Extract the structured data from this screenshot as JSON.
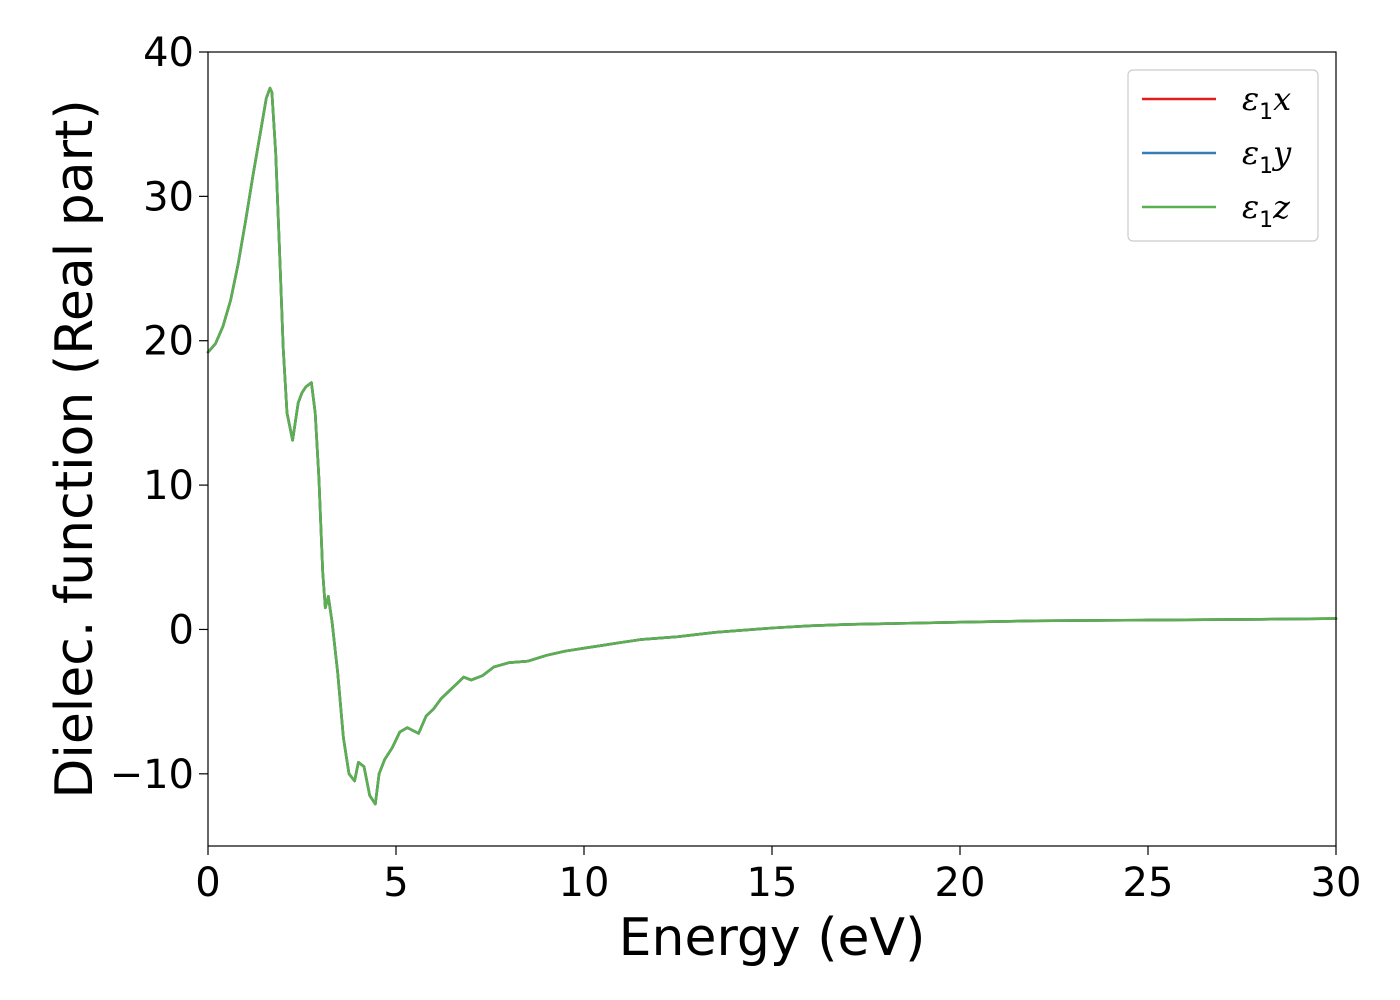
{
  "chart_data": {
    "type": "line",
    "title": "",
    "xlabel": "Energy (eV)",
    "ylabel": "Dielec. function (Real part)",
    "xlim": [
      0,
      30
    ],
    "ylim": [
      -15,
      40
    ],
    "xticks": [
      0,
      5,
      10,
      15,
      20,
      25,
      30
    ],
    "yticks": [
      -10,
      0,
      10,
      20,
      30,
      40
    ],
    "ytick_labels": [
      "−10",
      "0",
      "10",
      "20",
      "30",
      "40"
    ],
    "grid": false,
    "legend_position": "top-right",
    "series": [
      {
        "name": "ε1x",
        "symbol": "ε",
        "subscript": "1",
        "axis": "x",
        "color": "#e41a1c",
        "x": [
          0,
          0.2,
          0.4,
          0.6,
          0.8,
          1.0,
          1.2,
          1.4,
          1.55,
          1.65,
          1.7,
          1.8,
          1.9,
          2.0,
          2.1,
          2.25,
          2.4,
          2.5,
          2.6,
          2.75,
          2.85,
          2.95,
          3.05,
          3.12,
          3.2,
          3.3,
          3.45,
          3.6,
          3.75,
          3.9,
          4.0,
          4.15,
          4.3,
          4.45,
          4.55,
          4.7,
          4.9,
          5.1,
          5.3,
          5.45,
          5.6,
          5.8,
          6.0,
          6.2,
          6.4,
          6.6,
          6.8,
          7.0,
          7.3,
          7.6,
          8.0,
          8.5,
          9.0,
          9.5,
          10.0,
          10.5,
          11.0,
          11.5,
          12.5,
          13.5,
          15.0,
          16.0,
          17.0,
          18.0,
          20.0,
          22.0,
          25.0,
          28.0,
          30.0
        ],
        "y": [
          19.2,
          19.8,
          21.0,
          22.8,
          25.3,
          28.3,
          31.5,
          34.5,
          36.8,
          37.5,
          37.2,
          33.0,
          26.5,
          19.5,
          15.0,
          13.1,
          15.7,
          16.4,
          16.8,
          17.1,
          15.0,
          10.5,
          4.0,
          1.5,
          2.3,
          0.5,
          -3.0,
          -7.5,
          -10.0,
          -10.5,
          -9.2,
          -9.5,
          -11.5,
          -12.1,
          -10.0,
          -9.0,
          -8.2,
          -7.1,
          -6.8,
          -7.0,
          -7.2,
          -6.0,
          -5.5,
          -4.8,
          -4.3,
          -3.8,
          -3.3,
          -3.5,
          -3.2,
          -2.6,
          -2.3,
          -2.2,
          -1.8,
          -1.5,
          -1.3,
          -1.1,
          -0.9,
          -0.7,
          -0.5,
          -0.2,
          0.1,
          0.25,
          0.35,
          0.4,
          0.5,
          0.6,
          0.65,
          0.7,
          0.75
        ]
      },
      {
        "name": "ε1y",
        "symbol": "ε",
        "subscript": "1",
        "axis": "y",
        "color": "#377eb8",
        "x": [
          0,
          0.2,
          0.4,
          0.6,
          0.8,
          1.0,
          1.2,
          1.4,
          1.55,
          1.65,
          1.7,
          1.8,
          1.9,
          2.0,
          2.1,
          2.25,
          2.4,
          2.5,
          2.6,
          2.75,
          2.85,
          2.95,
          3.05,
          3.12,
          3.2,
          3.3,
          3.45,
          3.6,
          3.75,
          3.9,
          4.0,
          4.15,
          4.3,
          4.45,
          4.55,
          4.7,
          4.9,
          5.1,
          5.3,
          5.45,
          5.6,
          5.8,
          6.0,
          6.2,
          6.4,
          6.6,
          6.8,
          7.0,
          7.3,
          7.6,
          8.0,
          8.5,
          9.0,
          9.5,
          10.0,
          10.5,
          11.0,
          11.5,
          12.5,
          13.5,
          15.0,
          16.0,
          17.0,
          18.0,
          20.0,
          22.0,
          25.0,
          28.0,
          30.0
        ],
        "y": [
          19.2,
          19.8,
          21.0,
          22.8,
          25.3,
          28.3,
          31.5,
          34.5,
          36.8,
          37.5,
          37.2,
          33.0,
          26.5,
          19.5,
          15.0,
          13.1,
          15.7,
          16.4,
          16.8,
          17.1,
          15.0,
          10.5,
          4.0,
          1.5,
          2.3,
          0.5,
          -3.0,
          -7.5,
          -10.0,
          -10.5,
          -9.2,
          -9.5,
          -11.5,
          -12.1,
          -10.0,
          -9.0,
          -8.2,
          -7.1,
          -6.8,
          -7.0,
          -7.2,
          -6.0,
          -5.5,
          -4.8,
          -4.3,
          -3.8,
          -3.3,
          -3.5,
          -3.2,
          -2.6,
          -2.3,
          -2.2,
          -1.8,
          -1.5,
          -1.3,
          -1.1,
          -0.9,
          -0.7,
          -0.5,
          -0.2,
          0.1,
          0.25,
          0.35,
          0.4,
          0.5,
          0.6,
          0.65,
          0.7,
          0.75
        ]
      },
      {
        "name": "ε1z",
        "symbol": "ε",
        "subscript": "1",
        "axis": "z",
        "color": "#5aaf50",
        "x": [
          0,
          0.2,
          0.4,
          0.6,
          0.8,
          1.0,
          1.2,
          1.4,
          1.55,
          1.65,
          1.7,
          1.8,
          1.9,
          2.0,
          2.1,
          2.25,
          2.4,
          2.5,
          2.6,
          2.75,
          2.85,
          2.95,
          3.05,
          3.12,
          3.2,
          3.3,
          3.45,
          3.6,
          3.75,
          3.9,
          4.0,
          4.15,
          4.3,
          4.45,
          4.55,
          4.7,
          4.9,
          5.1,
          5.3,
          5.45,
          5.6,
          5.8,
          6.0,
          6.2,
          6.4,
          6.6,
          6.8,
          7.0,
          7.3,
          7.6,
          8.0,
          8.5,
          9.0,
          9.5,
          10.0,
          10.5,
          11.0,
          11.5,
          12.5,
          13.5,
          15.0,
          16.0,
          17.0,
          18.0,
          20.0,
          22.0,
          25.0,
          28.0,
          30.0
        ],
        "y": [
          19.2,
          19.8,
          21.0,
          22.8,
          25.3,
          28.3,
          31.5,
          34.5,
          36.8,
          37.5,
          37.2,
          33.0,
          26.5,
          19.5,
          15.0,
          13.1,
          15.7,
          16.4,
          16.8,
          17.1,
          15.0,
          10.5,
          4.0,
          1.5,
          2.3,
          0.5,
          -3.0,
          -7.5,
          -10.0,
          -10.5,
          -9.2,
          -9.5,
          -11.5,
          -12.1,
          -10.0,
          -9.0,
          -8.2,
          -7.1,
          -6.8,
          -7.0,
          -7.2,
          -6.0,
          -5.5,
          -4.8,
          -4.3,
          -3.8,
          -3.3,
          -3.5,
          -3.2,
          -2.6,
          -2.3,
          -2.2,
          -1.8,
          -1.5,
          -1.3,
          -1.1,
          -0.9,
          -0.7,
          -0.5,
          -0.2,
          0.1,
          0.25,
          0.35,
          0.4,
          0.5,
          0.6,
          0.65,
          0.7,
          0.75
        ]
      }
    ]
  }
}
